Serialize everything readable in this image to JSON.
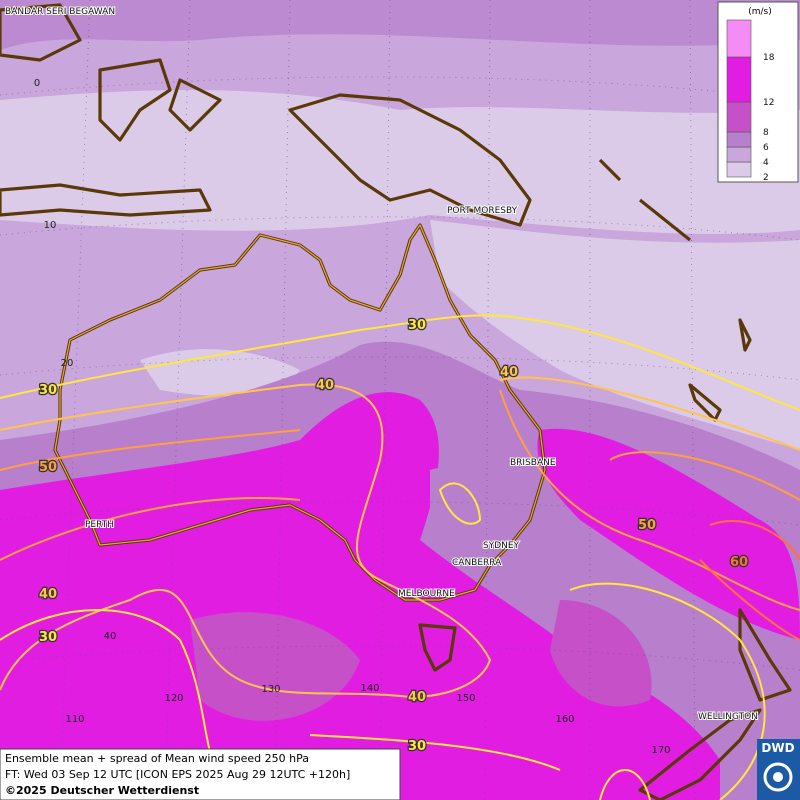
{
  "map": {
    "cities": [
      "BANDAR SERI BEGAWAN",
      "PORT MORESBY",
      "PERTH",
      "BRISBANE",
      "SYDNEY",
      "CANBERRA",
      "MELBOURNE",
      "WELLINGTON"
    ],
    "lat_labels": [
      0,
      10,
      20,
      40
    ],
    "lon_labels": [
      110,
      120,
      130,
      140,
      150,
      160,
      170
    ],
    "contour_labels": [
      30,
      30,
      40,
      40,
      50,
      50,
      60,
      40,
      30,
      40,
      30
    ]
  },
  "legend": {
    "unit": "(m/s)",
    "levels": [
      2,
      4,
      6,
      8,
      12,
      18
    ],
    "colors": [
      "#dccbe8",
      "#c9a6db",
      "#b87fcc",
      "#c650c8",
      "#e21de2",
      "#f58cf5"
    ]
  },
  "footer": {
    "lines": [
      "Ensemble mean + spread of Mean wind speed 250 hPa",
      "FT: Wed 03 Sep 12 UTC [ICON EPS 2025 Aug 29 12UTC +120h]",
      "©2025 Deutscher Wetterdienst"
    ],
    "logo": "DWD"
  }
}
